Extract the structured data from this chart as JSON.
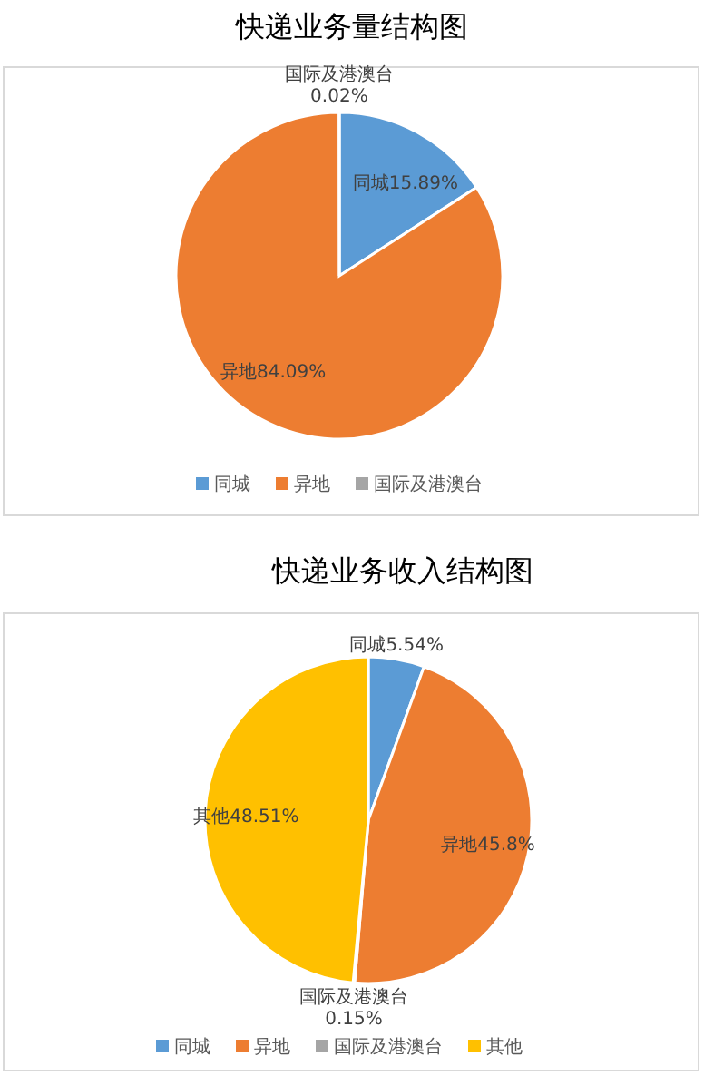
{
  "chart_data": [
    {
      "type": "pie",
      "title": "快递业务量结构图",
      "categories": [
        "同城",
        "异地",
        "国际及港澳台"
      ],
      "values": [
        15.89,
        84.09,
        0.02
      ],
      "value_labels": [
        "15.89%",
        "84.09%",
        "0.02%"
      ],
      "colors": [
        "#5b9bd5",
        "#ed7d31",
        "#a5a5a5"
      ],
      "legend": "bottom"
    },
    {
      "type": "pie",
      "title": "快递业务收入结构图",
      "categories": [
        "同城",
        "异地",
        "国际及港澳台",
        "其他"
      ],
      "values": [
        5.54,
        45.8,
        0.15,
        48.51
      ],
      "value_labels": [
        "5.54%",
        "45.8%",
        "0.15%",
        "48.51%"
      ],
      "colors": [
        "#5b9bd5",
        "#ed7d31",
        "#a5a5a5",
        "#ffc000"
      ],
      "legend": "bottom"
    }
  ]
}
